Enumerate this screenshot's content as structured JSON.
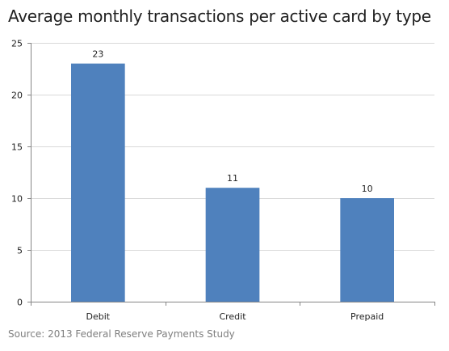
{
  "chart_data": {
    "type": "bar",
    "title": "Average monthly transactions per active card by type",
    "categories": [
      "Debit",
      "Credit",
      "Prepaid"
    ],
    "values": [
      23,
      11,
      10
    ],
    "data_labels": [
      "23",
      "11",
      "10"
    ],
    "y_ticks": [
      "0",
      "5",
      "10",
      "15",
      "20",
      "25"
    ],
    "ylim": [
      0,
      25
    ],
    "y_step": 5,
    "xlabel": "",
    "ylabel": "",
    "grid": true,
    "legend": "none",
    "bar_color": "#4f81bd",
    "grid_color": "#d9d9d9",
    "axis_color": "#868686",
    "source": "Source: 2013 Federal Reserve Payments Study"
  }
}
